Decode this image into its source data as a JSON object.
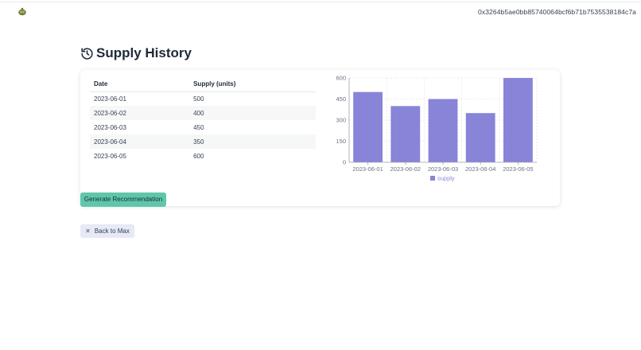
{
  "header": {
    "logo_icon": "turtle-logo-icon",
    "wallet_address": "0x3264b5ae0bb85740064bcf6b71b7535538184c7a"
  },
  "page": {
    "title": "Supply History",
    "title_icon": "history-icon"
  },
  "table": {
    "columns": [
      "Date",
      "Supply (units)"
    ],
    "rows": [
      [
        "2023-06-01",
        "500"
      ],
      [
        "2023-06-02",
        "400"
      ],
      [
        "2023-06-03",
        "450"
      ],
      [
        "2023-06-04",
        "350"
      ],
      [
        "2023-06-05",
        "600"
      ]
    ]
  },
  "chart_data": {
    "type": "bar",
    "categories": [
      "2023-06-01",
      "2023-06-02",
      "2023-06-03",
      "2023-06-04",
      "2023-06-05"
    ],
    "series": [
      {
        "name": "supply",
        "values": [
          500,
          400,
          450,
          350,
          600
        ]
      }
    ],
    "yticks": [
      "0",
      "150",
      "300",
      "450",
      "600"
    ],
    "ylim": [
      0,
      600
    ],
    "grid": true,
    "legend": "bottom",
    "color": "#8884d8"
  },
  "actions": {
    "generate_label": "Generate Recommendation",
    "back_label": "Back to Max",
    "back_icon": "close-icon"
  },
  "colors": {
    "accent": "#5ec7a9",
    "secondary": "#e6e9f6",
    "bar": "#8884d8"
  }
}
